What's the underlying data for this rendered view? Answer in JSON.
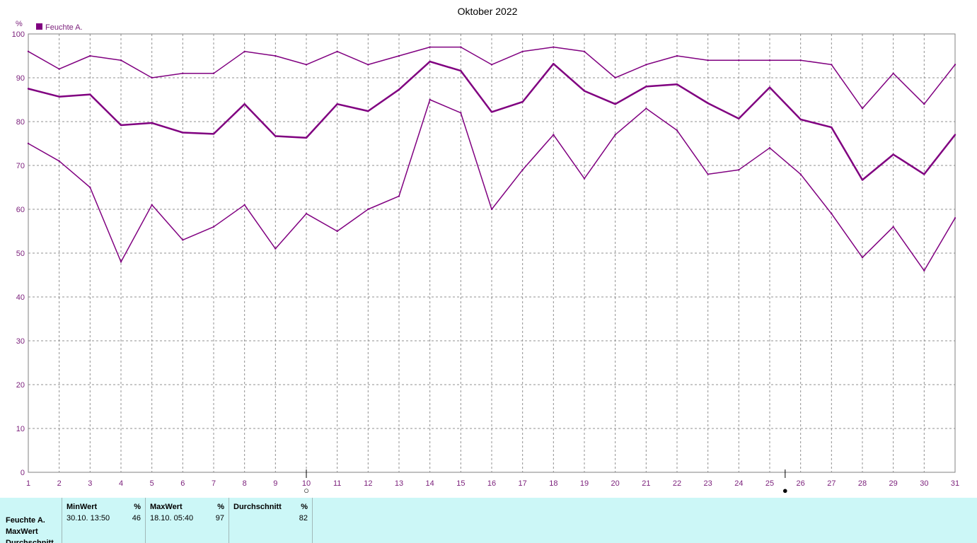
{
  "chart_data": {
    "type": "line",
    "title": "Oktober 2022",
    "ylabel": "%",
    "legend": {
      "label": "Feuchte A.",
      "placement": "top-left"
    },
    "ylim": [
      0,
      100
    ],
    "yticks": [
      0,
      10,
      20,
      30,
      40,
      50,
      60,
      70,
      80,
      90,
      100
    ],
    "x": [
      1,
      2,
      3,
      4,
      5,
      6,
      7,
      8,
      9,
      10,
      11,
      12,
      13,
      14,
      15,
      16,
      17,
      18,
      19,
      20,
      21,
      22,
      23,
      24,
      25,
      26,
      27,
      28,
      29,
      30,
      31
    ],
    "grid": true,
    "color": "#800080",
    "series": [
      {
        "values": [
          96,
          92,
          95,
          94,
          90,
          91,
          91,
          96,
          95,
          93,
          96,
          93,
          95,
          97,
          97,
          93,
          96,
          97,
          96,
          90,
          93,
          95,
          94,
          94,
          94,
          94,
          93,
          83,
          91,
          84,
          93
        ]
      },
      {
        "values": [
          87.5,
          85.7,
          86.2,
          79.2,
          79.7,
          77.5,
          77.2,
          84,
          76.7,
          76.3,
          84,
          82.4,
          87.3,
          93.7,
          91.6,
          82.2,
          84.5,
          93.2,
          87,
          84,
          88,
          88.5,
          84.2,
          80.7,
          87.8,
          80.5,
          78.7,
          66.7,
          72.5,
          68,
          77
        ]
      },
      {
        "values": [
          75,
          71,
          65,
          48,
          61,
          53,
          56,
          61,
          51,
          59,
          55,
          60,
          63,
          85,
          82,
          60,
          69,
          77,
          67,
          77,
          83,
          78,
          68,
          69,
          74,
          68,
          59,
          49,
          56,
          46,
          58
        ]
      }
    ],
    "moon_markers": [
      {
        "x": 10,
        "symbol": "○"
      },
      {
        "x": 25.5,
        "symbol": "●"
      }
    ]
  },
  "stats": {
    "row_labels": [
      "Feuchte A.",
      "MaxWert",
      "Durchschnitt"
    ],
    "min": {
      "header": "MinWert",
      "unit": "%",
      "time": "30.10.  13:50",
      "value": "46"
    },
    "max": {
      "header": "MaxWert",
      "unit": "%",
      "time": "18.10.  05:40",
      "value": "97"
    },
    "avg": {
      "header": "Durchschnitt",
      "unit": "%",
      "value": "82"
    }
  }
}
